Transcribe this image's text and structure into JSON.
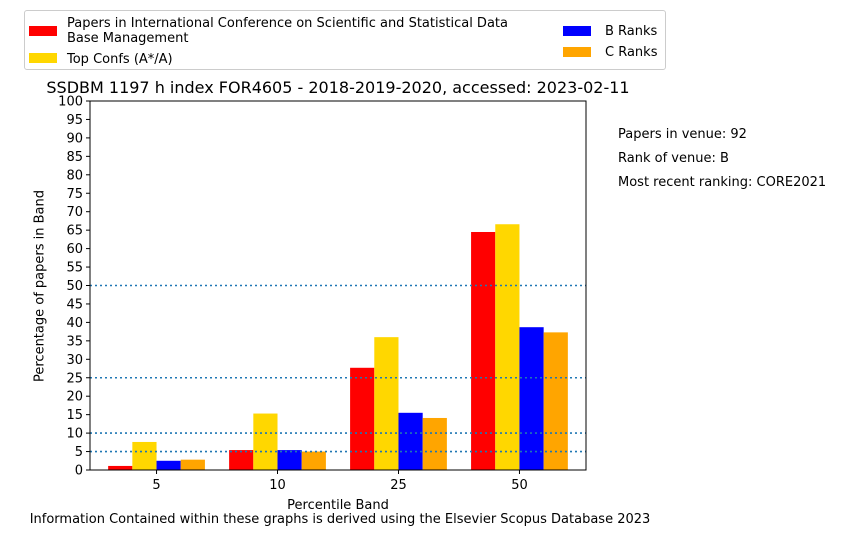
{
  "chart_data": {
    "type": "bar",
    "title": "SSDBM 1197 h index FOR4605 - 2018-2019-2020, accessed: 2023-02-11",
    "xlabel": "Percentile Band",
    "ylabel": "Percentage of papers in Band",
    "categories": [
      "5",
      "10",
      "25",
      "50"
    ],
    "ylim": [
      0,
      100
    ],
    "yticks": [
      "0",
      "5",
      "10",
      "15",
      "20",
      "25",
      "30",
      "35",
      "40",
      "45",
      "50",
      "55",
      "60",
      "65",
      "70",
      "75",
      "80",
      "85",
      "90",
      "95",
      "100"
    ],
    "reference_lines": [
      5,
      10,
      25,
      50
    ],
    "legend_position": "top",
    "series": [
      {
        "name": "Papers in International Conference on Scientific and Statistical Data Base Management",
        "color": "#ff0000",
        "values": [
          1.1,
          5.4,
          27.7,
          64.5
        ]
      },
      {
        "name": "Top Confs (A*/A)",
        "color": "#ffd700",
        "values": [
          7.6,
          15.3,
          36.0,
          66.6
        ]
      },
      {
        "name": "B Ranks",
        "color": "#0000ff",
        "values": [
          2.5,
          5.4,
          15.5,
          38.7
        ]
      },
      {
        "name": "C Ranks",
        "color": "#ffa500",
        "values": [
          2.8,
          5.0,
          14.1,
          37.3
        ]
      }
    ]
  },
  "legend": {
    "item1_line1": "Papers in International Conference on Scientific and Statistical Data",
    "item1_line2": "Base Management",
    "item2": "Top Confs (A*/A)",
    "item3": "B Ranks",
    "item4": "C Ranks"
  },
  "side_info": {
    "papers": "Papers in venue: 92",
    "rank": "Rank of venue: B",
    "recent": "Most recent ranking: CORE2021"
  },
  "footer": "Information Contained within these graphs is derived using the Elsevier Scopus Database 2023"
}
